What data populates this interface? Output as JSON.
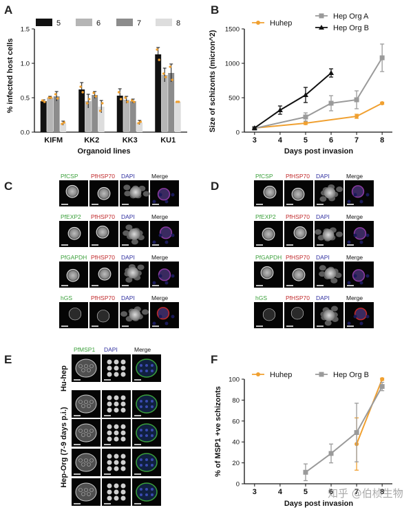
{
  "panels": {
    "A": "A",
    "B": "B",
    "C": "C",
    "D": "D",
    "E": "E",
    "F": "F"
  },
  "colors": {
    "black": "#111111",
    "grey": "#9a9a9a",
    "orange": "#f0a030",
    "green": "#3aa03a",
    "red": "#c0282a",
    "blue": "#3030a0",
    "bar5": "#111111",
    "bar6": "#b5b5b5",
    "bar7": "#8c8c8c",
    "bar8": "#dddddd"
  },
  "chart_data": [
    {
      "id": "A",
      "type": "bar",
      "ylabel": "% infected host cells",
      "xlabel": "Organoid lines",
      "ylim": [
        0,
        1.5
      ],
      "yticks": [
        "0.0",
        "0.5",
        "1.0",
        "1.5"
      ],
      "categories": [
        "KIFM",
        "KK2",
        "KK3",
        "KU1"
      ],
      "series": [
        {
          "name": "5",
          "values": [
            0.45,
            0.62,
            0.53,
            1.13
          ],
          "err": [
            0.02,
            0.1,
            0.1,
            0.1
          ]
        },
        {
          "name": "6",
          "values": [
            0.5,
            0.45,
            0.47,
            0.83
          ],
          "err": [
            0.02,
            0.1,
            0.05,
            0.1
          ]
        },
        {
          "name": "7",
          "values": [
            0.52,
            0.54,
            0.45,
            0.86
          ],
          "err": [
            0.07,
            0.05,
            0.03,
            0.13
          ]
        },
        {
          "name": "8",
          "values": [
            0.13,
            0.37,
            0.14,
            0.44
          ],
          "err": [
            0.03,
            0.09,
            0.03,
            0.01
          ]
        }
      ],
      "dots": [
        [
          [
            0.46,
            0.44
          ],
          [
            0.5,
            0.5
          ],
          [
            0.55,
            0.49
          ],
          [
            0.12,
            0.14
          ]
        ],
        [
          [
            0.66,
            0.58
          ],
          [
            0.42,
            0.48
          ],
          [
            0.57,
            0.52
          ],
          [
            0.31,
            0.42
          ]
        ],
        [
          [
            0.58,
            0.48
          ],
          [
            0.5,
            0.44
          ],
          [
            0.46,
            0.44
          ],
          [
            0.13,
            0.15
          ]
        ],
        [
          [
            1.2,
            1.05
          ],
          [
            0.85,
            0.8
          ],
          [
            0.95,
            0.76
          ],
          [
            0.44,
            0.44
          ]
        ]
      ]
    },
    {
      "id": "B",
      "type": "line",
      "ylabel": "Size of schizonts (micron^2)",
      "xlabel": "Days post invasion",
      "xlim": [
        2.6,
        8.4
      ],
      "ylim": [
        0,
        1500
      ],
      "xticks": [
        "3",
        "4",
        "5",
        "6",
        "7",
        "8"
      ],
      "yticks": [
        "0",
        "500",
        "1000",
        "1500"
      ],
      "series": [
        {
          "name": "Huhep",
          "x": [
            3,
            5,
            7,
            8
          ],
          "y": [
            60,
            130,
            230,
            420
          ],
          "err": [
            10,
            20,
            30,
            15
          ],
          "marker": "circle",
          "color": "#f0a030"
        },
        {
          "name": "Hep Org A",
          "x": [
            3,
            5,
            6,
            7,
            8
          ],
          "y": [
            55,
            220,
            420,
            470,
            1080
          ],
          "err": [
            10,
            60,
            110,
            130,
            200
          ],
          "marker": "square",
          "color": "#9a9a9a"
        },
        {
          "name": "Hep Org B",
          "x": [
            3,
            4,
            5,
            6
          ],
          "y": [
            60,
            320,
            540,
            860
          ],
          "err": [
            10,
            60,
            110,
            60
          ],
          "marker": "triangle",
          "color": "#111111"
        }
      ]
    },
    {
      "id": "F",
      "type": "line",
      "ylabel": "% of MSP1 +ve schizonts",
      "xlabel": "Days post invasion",
      "xlim": [
        2.6,
        8.4
      ],
      "ylim": [
        0,
        100
      ],
      "xticks": [
        "3",
        "4",
        "5",
        "6",
        "7",
        "8"
      ],
      "yticks": [
        "0",
        "20",
        "40",
        "60",
        "80",
        "100"
      ],
      "series": [
        {
          "name": "Huhep",
          "x": [
            7,
            8
          ],
          "y": [
            38,
            100
          ],
          "err": [
            25,
            1
          ],
          "marker": "circle",
          "color": "#f0a030"
        },
        {
          "name": "Hep Org B",
          "x": [
            5,
            6,
            7,
            8
          ],
          "y": [
            11,
            29,
            49,
            93
          ],
          "err": [
            8,
            9,
            28,
            4
          ],
          "marker": "square",
          "color": "#9a9a9a"
        }
      ]
    }
  ],
  "micrographs": {
    "C": {
      "rows": [
        [
          "PfCSP",
          "PfHSP70",
          "DAPI",
          "Merge"
        ],
        [
          "PfEXP2",
          "PfHSP70",
          "DAPI",
          "Merge"
        ],
        [
          "PfGAPDH",
          "PfHSP70",
          "DAPI",
          "Merge"
        ],
        [
          "hGS",
          "PfHSP70",
          "DAPI",
          "Merge"
        ]
      ]
    },
    "D": {
      "rows": [
        [
          "PfCSP",
          "PfHSP70",
          "DAPI",
          "Merge"
        ],
        [
          "PfEXP2",
          "PfHSP70",
          "DAPI",
          "Merge"
        ],
        [
          "PfGAPDH",
          "PfHSP70",
          "DAPI",
          "Merge"
        ],
        [
          "hGS",
          "PfHSP70",
          "DAPI",
          "Merge"
        ]
      ]
    },
    "E": {
      "headers": [
        "PfMSP1",
        "DAPI",
        "Merge"
      ],
      "hu_label": "Hu-hep",
      "org_label": "Hep-Org (7-9 days p.i.)"
    }
  },
  "watermark": "知乎 @伯桢生物"
}
